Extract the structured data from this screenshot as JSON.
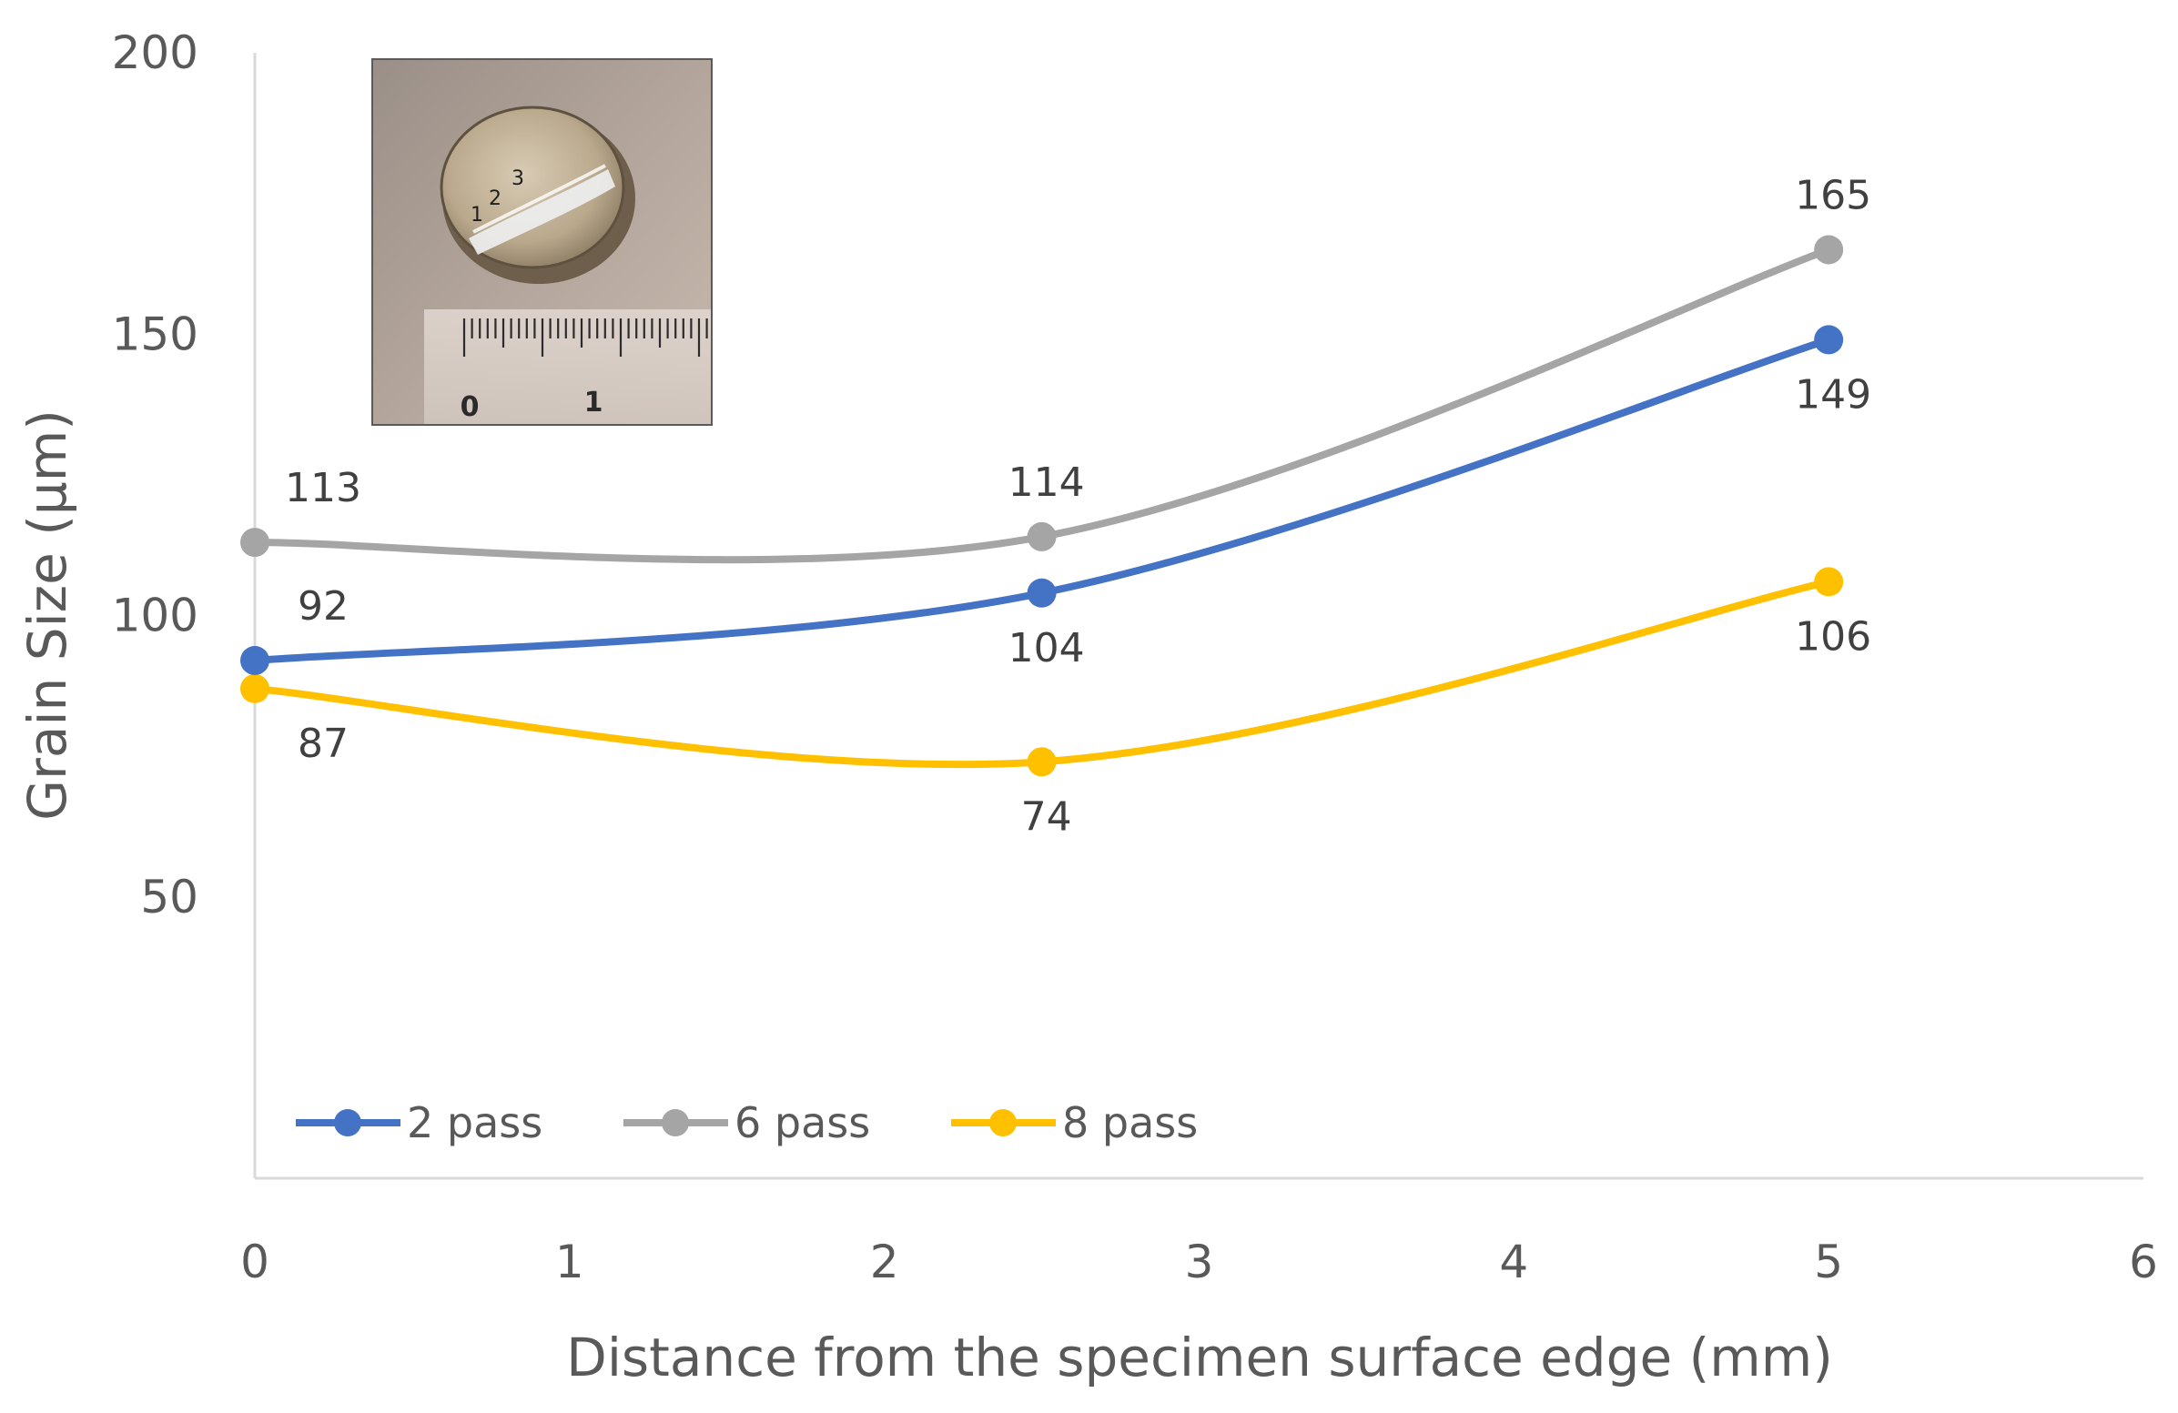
{
  "chart_data": {
    "type": "line",
    "title": "",
    "xlabel": "Distance from the specimen surface edge (mm)",
    "ylabel": "Grain Size (μm)",
    "xlim": [
      0,
      6
    ],
    "ylim": [
      0,
      200
    ],
    "x_ticks": [
      "0",
      "1",
      "2",
      "3",
      "4",
      "5",
      "6"
    ],
    "y_ticks": [
      "50",
      "100",
      "150",
      "200"
    ],
    "y_tick_values": [
      50,
      100,
      150,
      200
    ],
    "x_tick_values": [
      0,
      1,
      2,
      3,
      4,
      5,
      6
    ],
    "grid": false,
    "smooth": true,
    "legend_position": "bottom-left",
    "series": [
      {
        "name": "2 pass",
        "color": "#4472C4",
        "x": [
          0,
          2.5,
          5
        ],
        "values": [
          92,
          104,
          149
        ],
        "labels": [
          "92",
          "104",
          "149"
        ],
        "label_side": [
          "above",
          "below",
          "below"
        ]
      },
      {
        "name": "6 pass",
        "color": "#A5A5A5",
        "x": [
          0,
          2.5,
          5
        ],
        "values": [
          113,
          114,
          165
        ],
        "labels": [
          "113",
          "114",
          "165"
        ],
        "label_side": [
          "above",
          "above",
          "above"
        ]
      },
      {
        "name": "8 pass",
        "color": "#FFC000",
        "x": [
          0,
          2.5,
          5
        ],
        "values": [
          87,
          74,
          106
        ],
        "labels": [
          "87",
          "74",
          "106"
        ],
        "label_side": [
          "below",
          "below",
          "below"
        ]
      }
    ]
  },
  "inset_photo": {
    "icon": "specimen-photo-icon",
    "point_marks": [
      "1",
      "2",
      "3"
    ],
    "ruler_marks": [
      "0",
      "1"
    ]
  }
}
